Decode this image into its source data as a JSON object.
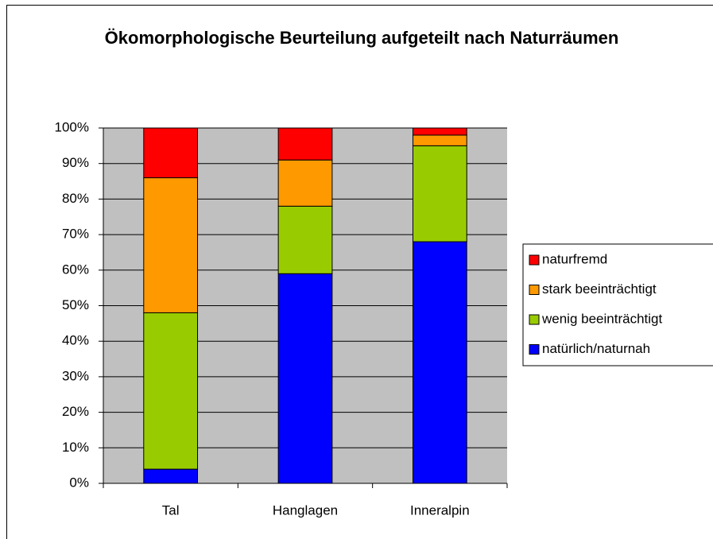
{
  "chart_data": {
    "type": "stacked_bar",
    "title": "Ökomorphologische Beurteilung aufgeteilt nach Naturräumen",
    "categories": [
      "Tal",
      "Hanglagen",
      "Inneralpin"
    ],
    "series": [
      {
        "name": "natürlich/naturnah",
        "color": "#0000ff",
        "values": [
          4,
          59,
          68
        ]
      },
      {
        "name": "wenig beeinträchtigt",
        "color": "#99cc00",
        "values": [
          44,
          19,
          27
        ]
      },
      {
        "name": "stark beeinträchtigt",
        "color": "#ff9900",
        "values": [
          38,
          13,
          3
        ]
      },
      {
        "name": "naturfremd",
        "color": "#ff0000",
        "values": [
          14,
          9,
          2
        ]
      }
    ],
    "ylim": [
      0,
      100
    ],
    "yticks": [
      {
        "value": 0,
        "label": "0%"
      },
      {
        "value": 10,
        "label": "10%"
      },
      {
        "value": 20,
        "label": "20%"
      },
      {
        "value": 30,
        "label": "30%"
      },
      {
        "value": 40,
        "label": "40%"
      },
      {
        "value": 50,
        "label": "50%"
      },
      {
        "value": 60,
        "label": "60%"
      },
      {
        "value": 70,
        "label": "70%"
      },
      {
        "value": 80,
        "label": "80%"
      },
      {
        "value": 90,
        "label": "90%"
      },
      {
        "value": 100,
        "label": "100%"
      }
    ],
    "grid": true,
    "legend": "right"
  }
}
